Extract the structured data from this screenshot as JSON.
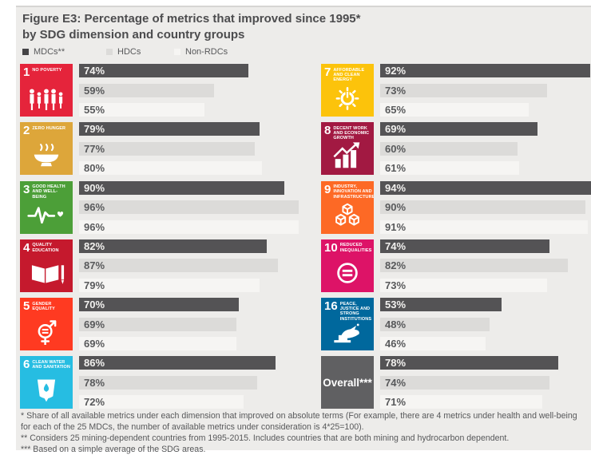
{
  "figure": {
    "title_line1": "Figure E3: Percentage of metrics that improved since 1995*",
    "title_line2": "by SDG dimension and country groups"
  },
  "legend": [
    {
      "label": "MDCs**",
      "color": "#454446"
    },
    {
      "label": "HDCs",
      "color": "#dcdbd9"
    },
    {
      "label": "Non-RDCs",
      "color": "#f6f5f3"
    }
  ],
  "chart_data": {
    "type": "bar",
    "orientation": "horizontal",
    "title": "Figure E3: Percentage of metrics that improved since 1995* by SDG dimension and country groups",
    "unit": "%",
    "xlim": [
      0,
      100
    ],
    "value_labels": true,
    "grid": false,
    "legend_position": "top-left",
    "series_names": [
      "MDCs**",
      "HDCs",
      "Non-RDCs"
    ],
    "series_colors": [
      "#545355",
      "#dcdbd9",
      "#f6f5f3"
    ],
    "groups": [
      {
        "column": "left",
        "number": "1",
        "label": "NO POVERTY",
        "color": "#e5243b",
        "icon": "no-poverty-icon",
        "values": [
          74,
          59,
          55
        ]
      },
      {
        "column": "left",
        "number": "2",
        "label": "ZERO HUNGER",
        "color": "#dda63a",
        "icon": "zero-hunger-icon",
        "values": [
          79,
          77,
          80
        ]
      },
      {
        "column": "left",
        "number": "3",
        "label": "GOOD HEALTH AND WELL-BEING",
        "color": "#4c9f38",
        "icon": "good-health-icon",
        "values": [
          90,
          96,
          96
        ]
      },
      {
        "column": "left",
        "number": "4",
        "label": "QUALITY EDUCATION",
        "color": "#c5192d",
        "icon": "quality-education-icon",
        "values": [
          82,
          87,
          79
        ]
      },
      {
        "column": "left",
        "number": "5",
        "label": "GENDER EQUALITY",
        "color": "#ff3a21",
        "icon": "gender-equality-icon",
        "values": [
          70,
          69,
          69
        ]
      },
      {
        "column": "left",
        "number": "6",
        "label": "CLEAN WATER AND SANITATION",
        "color": "#26bde2",
        "icon": "clean-water-icon",
        "values": [
          86,
          78,
          72
        ]
      },
      {
        "column": "right",
        "number": "7",
        "label": "AFFORDABLE AND CLEAN ENERGY",
        "color": "#fcc30b",
        "icon": "clean-energy-icon",
        "values": [
          92,
          73,
          65
        ]
      },
      {
        "column": "right",
        "number": "8",
        "label": "DECENT WORK AND ECONOMIC GROWTH",
        "color": "#a21942",
        "icon": "decent-work-icon",
        "values": [
          69,
          60,
          61
        ]
      },
      {
        "column": "right",
        "number": "9",
        "label": "INDUSTRY, INNOVATION AND INFRASTRUCTURE",
        "color": "#fd6925",
        "icon": "industry-innovation-icon",
        "values": [
          94,
          90,
          91
        ]
      },
      {
        "column": "right",
        "number": "10",
        "label": "REDUCED INEQUALITIES",
        "color": "#dd1367",
        "icon": "reduced-inequalities-icon",
        "values": [
          74,
          82,
          73
        ]
      },
      {
        "column": "right",
        "number": "16",
        "label": "PEACE, JUSTICE AND STRONG INSTITUTIONS",
        "color": "#00689d",
        "icon": "peace-justice-icon",
        "values": [
          53,
          48,
          46
        ]
      },
      {
        "column": "right",
        "number": "",
        "label": "Overall***",
        "color": "#606062",
        "icon": "",
        "values": [
          78,
          74,
          71
        ]
      }
    ]
  },
  "footnotes": [
    "* Share of all available metrics under each dimension that improved on absolute terms (For example, there are 4 metrics under health and well-being for each of the 25 MDCs, the number of available metrics under consideration is 4*25=100).",
    "** Considers 25 mining-dependent countries from 1995-2015. Includes countries that are both mining and hydrocarbon dependent.",
    "*** Based on a simple average of the SDG areas."
  ]
}
